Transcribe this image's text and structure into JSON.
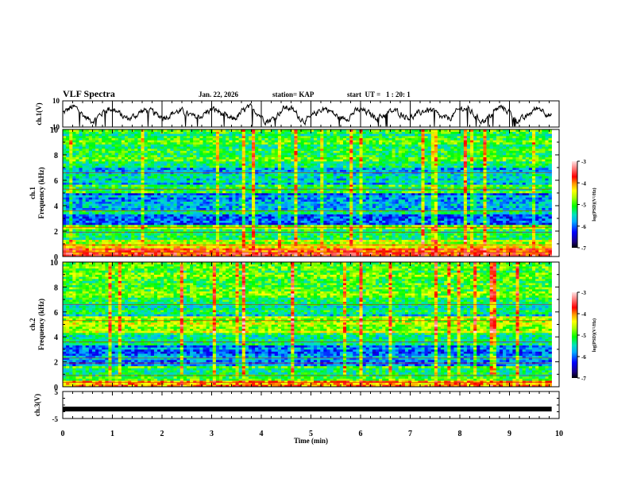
{
  "header": {
    "title": "VLF Spectra",
    "date": "Jan. 22, 2026",
    "station": "station= KAP",
    "start_ut": "start  UT =   1 : 20: 1"
  },
  "chart_data": [
    {
      "type": "line",
      "name": "ch1-waveform",
      "ylabel": "ch.1(V)",
      "ylim": [
        -10,
        10
      ],
      "yticks": [
        "10",
        "-10"
      ],
      "xlim": [
        0,
        10
      ],
      "note": "noisy waveform, values roughly between -8 and 8 V, ending near 9.8 min"
    },
    {
      "type": "heatmap",
      "name": "ch1-spectrogram",
      "ylabel_line1": "ch.1",
      "ylabel_line2": "Frequency  (kHz)",
      "ylim": [
        0,
        10
      ],
      "yticks": [
        "0",
        "2",
        "4",
        "6",
        "8",
        "10"
      ],
      "xlim": [
        0,
        10
      ],
      "data_end_min": 9.85,
      "colorbar": {
        "label": "log(PSD)(V²/Hz)",
        "range": [
          -7,
          -3
        ],
        "ticks": [
          "-3",
          "-4",
          "-5",
          "-6",
          "-7"
        ]
      },
      "bands_khz": [
        {
          "from": 0,
          "to": 0.6,
          "level": -3.8
        },
        {
          "from": 0.6,
          "to": 1.3,
          "level": -4.6
        },
        {
          "from": 1.3,
          "to": 2.2,
          "level": -5.3
        },
        {
          "from": 2.2,
          "to": 2.5,
          "level": -4.7
        },
        {
          "from": 2.5,
          "to": 3.3,
          "level": -6.0
        },
        {
          "from": 3.3,
          "to": 3.7,
          "level": -5.2
        },
        {
          "from": 3.7,
          "to": 5.0,
          "level": -5.9
        },
        {
          "from": 5.0,
          "to": 5.6,
          "level": -5.0
        },
        {
          "from": 5.6,
          "to": 7.0,
          "level": -5.6
        },
        {
          "from": 7.0,
          "to": 10,
          "level": -5.1
        }
      ]
    },
    {
      "type": "heatmap",
      "name": "ch2-spectrogram",
      "ylabel_line1": "ch.2",
      "ylabel_line2": "Frequency  (kHz)",
      "ylim": [
        0,
        10
      ],
      "yticks": [
        "0",
        "2",
        "4",
        "6",
        "8",
        "10"
      ],
      "xlim": [
        0,
        10
      ],
      "data_end_min": 9.85,
      "colorbar": {
        "label": "log(PSD)(V²/Hz)",
        "range": [
          -7,
          -3
        ],
        "ticks": [
          "-3",
          "-4",
          "-5",
          "-6",
          "-7"
        ]
      },
      "bands_khz": [
        {
          "from": 0,
          "to": 0.5,
          "level": -4.0
        },
        {
          "from": 0.5,
          "to": 1.6,
          "level": -5.1
        },
        {
          "from": 1.6,
          "to": 3.3,
          "level": -5.9
        },
        {
          "from": 3.3,
          "to": 4.4,
          "level": -5.2
        },
        {
          "from": 4.4,
          "to": 5.6,
          "level": -4.6
        },
        {
          "from": 5.6,
          "to": 7.2,
          "level": -5.4
        },
        {
          "from": 7.2,
          "to": 10,
          "level": -4.9
        }
      ]
    },
    {
      "type": "line",
      "name": "ch3-waveform",
      "ylabel": "ch.3(V)",
      "ylim": [
        -5,
        5
      ],
      "yticks": [
        "5",
        "-5"
      ],
      "xlim": [
        0,
        10
      ],
      "xlabel": "Time  (min)",
      "xticks": [
        "0",
        "1",
        "2",
        "3",
        "4",
        "5",
        "6",
        "7",
        "8",
        "9",
        "10"
      ],
      "value_approx": -1.5,
      "data_end_min": 9.85
    }
  ]
}
